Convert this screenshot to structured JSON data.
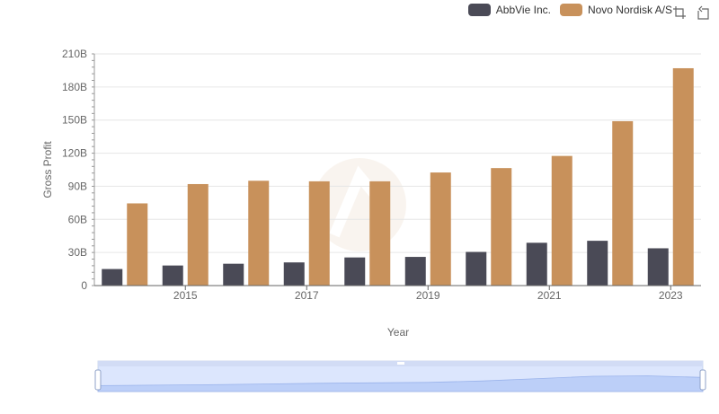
{
  "legend": {
    "items": [
      {
        "label": "AbbVie Inc.",
        "color": "#4a4a56"
      },
      {
        "label": "Novo Nordisk A/S",
        "color": "#c8915b"
      }
    ]
  },
  "toolbox": {
    "icons": [
      "zoom-icon",
      "restore-icon"
    ]
  },
  "chart_data": {
    "type": "bar",
    "categories": [
      "2014",
      "2015",
      "2016",
      "2017",
      "2018",
      "2019",
      "2020",
      "2021",
      "2022",
      "2023"
    ],
    "x_tick_labels": [
      "2015",
      "2017",
      "2019",
      "2021",
      "2023"
    ],
    "series": [
      {
        "name": "AbbVie Inc.",
        "color": "#4a4a56",
        "values": [
          15,
          18.2,
          19.8,
          21,
          25.5,
          26,
          30.5,
          38.8,
          40.6,
          33.8
        ]
      },
      {
        "name": "Novo Nordisk A/S",
        "color": "#c8915b",
        "values": [
          74.5,
          92,
          95,
          94.5,
          94.5,
          102.5,
          106.5,
          117.5,
          149,
          197
        ]
      }
    ],
    "xlabel": "Year",
    "ylabel": "Gross Profit",
    "ylim": [
      0,
      210
    ],
    "y_ticks": [
      0,
      30,
      60,
      90,
      120,
      150,
      180,
      210
    ],
    "y_tick_labels": [
      "0",
      "30B",
      "60B",
      "90B",
      "120B",
      "150B",
      "180B",
      "210B"
    ],
    "grid": "horizontal",
    "legend_position": "top-right"
  },
  "datazoom": {
    "overview": [
      0.1,
      0.12,
      0.14,
      0.17,
      0.2,
      0.22,
      0.24,
      0.3,
      0.4,
      0.5,
      0.52,
      0.45
    ]
  }
}
